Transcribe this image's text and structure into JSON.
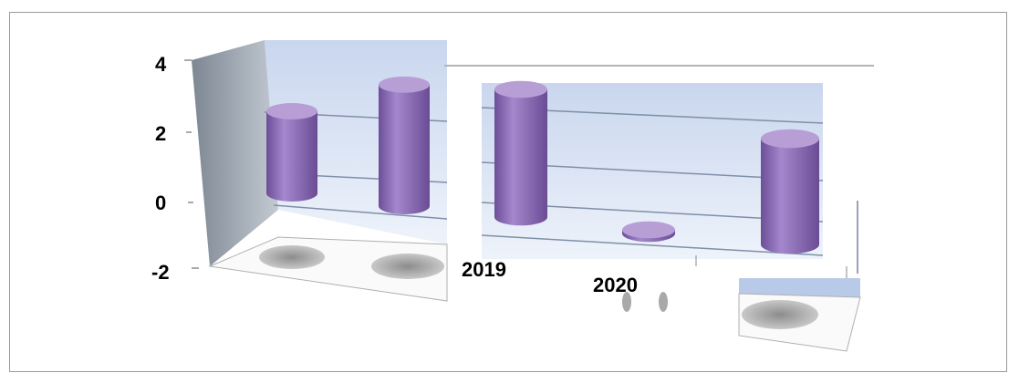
{
  "chart_data": {
    "type": "bar",
    "style": "3d-cylinder",
    "title": "",
    "xlabel": "",
    "ylabel": "",
    "ylim": [
      -2,
      4
    ],
    "yticks": [
      4,
      2,
      0,
      -2
    ],
    "grid": true,
    "legend": "none",
    "categories": [
      "",
      "",
      "2019",
      "2020",
      ""
    ],
    "values": [
      2.5,
      3.7,
      3.5,
      0.1,
      2.9
    ]
  },
  "colors": {
    "bar": "#8e6bb8",
    "bar_top": "#b79fd6",
    "wall": "#dfe8f6",
    "side_wall": "#9aa3ae",
    "floor_shadow": "#a0a0a0"
  }
}
